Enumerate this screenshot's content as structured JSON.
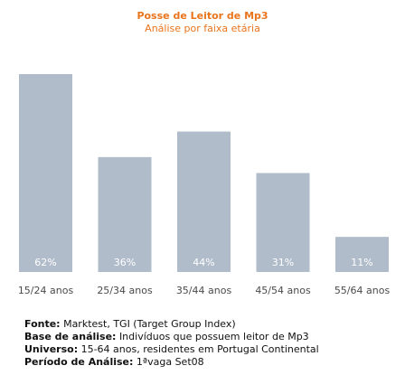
{
  "chart_data": {
    "type": "bar",
    "title": "Posse de Leitor de Mp3",
    "subtitle": "Análise por faixa etária",
    "categories": [
      "15/24 anos",
      "25/34 anos",
      "35/44 anos",
      "45/54 anos",
      "55/64 anos"
    ],
    "values": [
      62,
      36,
      44,
      31,
      11
    ],
    "value_labels": [
      "62%",
      "36%",
      "44%",
      "31%",
      "11%"
    ],
    "ylim": [
      0,
      62
    ],
    "bar_color": "#b1bccb",
    "grid": false,
    "legend": "none"
  },
  "footer": {
    "source_label": "Fonte:",
    "source_value": "Marktest, TGI (Target Group Index)",
    "base_label": "Base de análise:",
    "base_value": "Indivíduos que possuem leitor de Mp3",
    "universe_label": "Universo:",
    "universe_value": "15-64 anos, residentes em Portugal Continental",
    "period_label": "Período de Análise:",
    "period_value": "1ªvaga Set08"
  }
}
